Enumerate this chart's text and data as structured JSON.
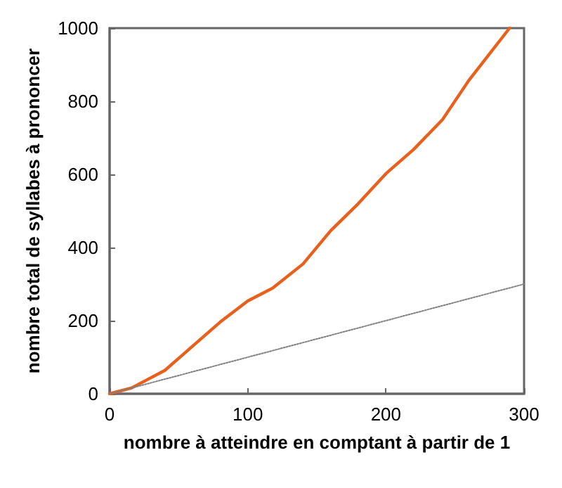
{
  "chart_data": {
    "type": "line",
    "xlabel": "nombre à atteindre en comptant à partir de 1",
    "ylabel": "nombre total de syllabes à prononcer",
    "xlim": [
      0,
      300
    ],
    "xticks": [
      0,
      100,
      200,
      300
    ],
    "ylim": [
      0,
      1000
    ],
    "yticks": [
      0,
      200,
      400,
      600,
      800,
      1000
    ],
    "grid": false,
    "marker": "none",
    "series": [
      {
        "color": "#e8601c",
        "line_style": "solid",
        "x": [
          0,
          16,
          40,
          60,
          80,
          100,
          118,
          140,
          160,
          180,
          200,
          220,
          241,
          260,
          289.5
        ],
        "values": [
          0,
          16,
          64,
          130,
          196,
          254,
          289,
          355,
          446,
          520,
          602,
          668,
          750,
          857,
          1000
        ]
      },
      {
        "color": "#808080",
        "line_style": "dotted",
        "x": [
          0,
          300
        ],
        "values": [
          0,
          300
        ]
      }
    ]
  }
}
